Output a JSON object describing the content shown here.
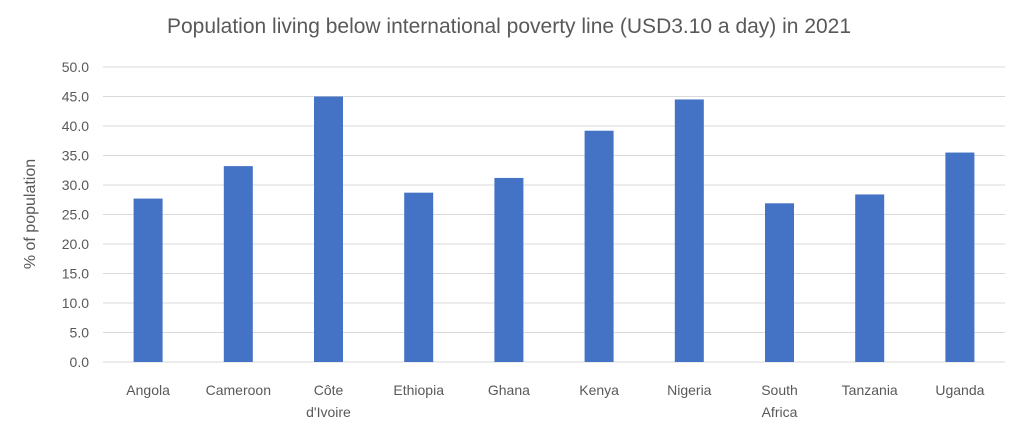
{
  "chart_data": {
    "type": "bar",
    "title": "Population living below international poverty line (USD3.10 a day) in 2021",
    "xlabel": "",
    "ylabel": "% of population",
    "ylim": [
      0,
      50
    ],
    "yticks": [
      "0.0",
      "5.0",
      "10.0",
      "15.0",
      "20.0",
      "25.0",
      "30.0",
      "35.0",
      "40.0",
      "45.0",
      "50.0"
    ],
    "categories": [
      [
        "Angola"
      ],
      [
        "Cameroon"
      ],
      [
        "Côte",
        "d'Ivoire"
      ],
      [
        "Ethiopia"
      ],
      [
        "Ghana"
      ],
      [
        "Kenya"
      ],
      [
        "Nigeria"
      ],
      [
        "South",
        "Africa"
      ],
      [
        "Tanzania"
      ],
      [
        "Uganda"
      ]
    ],
    "values": [
      27.7,
      33.2,
      45.0,
      28.7,
      31.2,
      39.2,
      44.5,
      26.9,
      28.4,
      35.5
    ],
    "grid": true,
    "legend": "none",
    "colors": {
      "bar": "#4472c4"
    }
  }
}
